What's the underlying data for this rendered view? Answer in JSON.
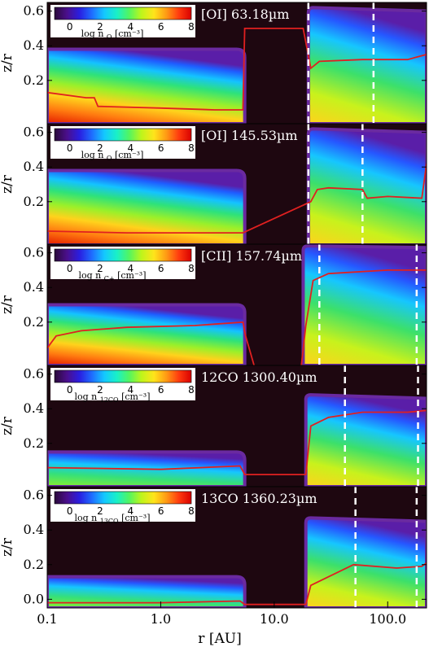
{
  "chart_data": {
    "type": "heatmap",
    "xlabel": "r [AU]",
    "ylabel": "z/r",
    "x_scale": "log",
    "xlim": [
      0.1,
      220
    ],
    "ylim": [
      -0.05,
      0.65
    ],
    "x_ticks": [
      {
        "value": 0.1,
        "label": "0.1"
      },
      {
        "value": 1,
        "label": "1.0"
      },
      {
        "value": 10,
        "label": "10.0"
      },
      {
        "value": 100,
        "label": "100.0"
      }
    ],
    "y_ticks_top_panels": [
      {
        "value": 0.2,
        "label": "0.2"
      },
      {
        "value": 0.4,
        "label": "0.4"
      },
      {
        "value": 0.6,
        "label": "0.6"
      }
    ],
    "y_ticks_bottom_panel": [
      {
        "value": 0.0,
        "label": "0.0"
      },
      {
        "value": 0.2,
        "label": "0.2"
      },
      {
        "value": 0.4,
        "label": "0.4"
      },
      {
        "value": 0.6,
        "label": "0.6"
      }
    ],
    "colorbar": {
      "range": [
        -1,
        8
      ],
      "ticks": [
        "0",
        "2",
        "4",
        "6",
        "8"
      ],
      "colors": [
        "#2a0a3a",
        "#4b0f8c",
        "#2a1ee0",
        "#1f6cff",
        "#14c8ff",
        "#19f0c8",
        "#52f561",
        "#bff51b",
        "#ffe41b",
        "#ff9a14",
        "#ff3b0f",
        "#d80000"
      ]
    },
    "background_color": "#1e0710",
    "contour_color": "#e02020",
    "marker_color": "#ffffff",
    "panels": [
      {
        "line": "[OI] 63.18µm",
        "cb_label": "log n",
        "cb_sub": "O",
        "cb_unit": "[cm⁻³]",
        "inner_disk": {
          "r_start": 0.1,
          "r_end": 5.5,
          "z_top": 0.38
        },
        "outer_disk": {
          "r_start": 20,
          "r_end": 220,
          "z_top_start": 0.62,
          "z_top_end": 0.6
        },
        "red_contour": [
          [
            0.1,
            0.13
          ],
          [
            0.22,
            0.1
          ],
          [
            0.26,
            0.1
          ],
          [
            0.28,
            0.05
          ],
          [
            1,
            0.04
          ],
          [
            3,
            0.03
          ],
          [
            5.3,
            0.03
          ],
          [
            5.5,
            0.5
          ],
          [
            18,
            0.5
          ],
          [
            21,
            0.27
          ],
          [
            25,
            0.31
          ],
          [
            60,
            0.32
          ],
          [
            150,
            0.32
          ],
          [
            220,
            0.35
          ]
        ],
        "white_dashed_r": [
          20,
          75
        ]
      },
      {
        "line": "[OI] 145.53µm",
        "cb_label": "log n",
        "cb_sub": "O",
        "cb_unit": "[cm⁻³]",
        "inner_disk": {
          "r_start": 0.1,
          "r_end": 5.5,
          "z_top": 0.38
        },
        "outer_disk": {
          "r_start": 20,
          "r_end": 220,
          "z_top_start": 0.62,
          "z_top_end": 0.6
        },
        "red_contour": [
          [
            0.1,
            0.03
          ],
          [
            0.5,
            0.02
          ],
          [
            5.3,
            0.02
          ],
          [
            21,
            0.2
          ],
          [
            24,
            0.27
          ],
          [
            30,
            0.28
          ],
          [
            60,
            0.27
          ],
          [
            66,
            0.22
          ],
          [
            100,
            0.23
          ],
          [
            200,
            0.22
          ],
          [
            220,
            0.42
          ]
        ],
        "white_dashed_r": [
          20,
          60
        ]
      },
      {
        "line": "[CII] 157.74µm",
        "cb_label": "log n",
        "cb_sub": "C+",
        "cb_unit": "[cm⁻³]",
        "inner_disk": {
          "r_start": 0.1,
          "r_end": 5.5,
          "z_top": 0.3
        },
        "outer_disk": {
          "r_start": 18,
          "r_end": 220,
          "z_top_start": 0.64,
          "z_top_end": 0.63
        },
        "red_contour": [
          [
            0.1,
            0.05
          ],
          [
            0.12,
            0.12
          ],
          [
            0.2,
            0.15
          ],
          [
            0.5,
            0.17
          ],
          [
            2,
            0.18
          ],
          [
            5.3,
            0.2
          ],
          [
            5.6,
            0.12
          ],
          [
            7,
            -0.1
          ],
          [
            17,
            -0.1
          ],
          [
            19,
            0.18
          ],
          [
            22,
            0.44
          ],
          [
            30,
            0.48
          ],
          [
            100,
            0.5
          ],
          [
            220,
            0.5
          ]
        ],
        "white_dashed_r": [
          25,
          180
        ]
      },
      {
        "line": "12CO 1300.40µm",
        "cb_label": "log n",
        "cb_sub": "12CO",
        "cb_unit": "[cm⁻³]",
        "inner_disk": {
          "r_start": 0.1,
          "r_end": 5.5,
          "z_top": 0.15
        },
        "outer_disk": {
          "r_start": 19,
          "r_end": 220,
          "z_top_start": 0.48,
          "z_top_end": 0.46
        },
        "red_contour": [
          [
            0.1,
            0.06
          ],
          [
            1,
            0.05
          ],
          [
            5,
            0.07
          ],
          [
            5.5,
            0.02
          ],
          [
            19,
            0.02
          ],
          [
            21,
            0.3
          ],
          [
            30,
            0.35
          ],
          [
            60,
            0.38
          ],
          [
            150,
            0.38
          ],
          [
            220,
            0.39
          ]
        ],
        "white_dashed_r": [
          42,
          185
        ]
      },
      {
        "line": "13CO 1360.23µm",
        "cb_label": "log n",
        "cb_sub": "13CO",
        "cb_unit": "[cm⁻³]",
        "inner_disk": {
          "r_start": 0.1,
          "r_end": 5.5,
          "z_top": 0.13
        },
        "outer_disk": {
          "r_start": 19,
          "r_end": 220,
          "z_top_start": 0.47,
          "z_top_end": 0.45
        },
        "red_contour": [
          [
            0.1,
            -0.02
          ],
          [
            1,
            -0.02
          ],
          [
            5,
            -0.01
          ],
          [
            5.5,
            -0.03
          ],
          [
            19,
            -0.03
          ],
          [
            21,
            0.08
          ],
          [
            28,
            0.12
          ],
          [
            50,
            0.2
          ],
          [
            120,
            0.18
          ],
          [
            200,
            0.19
          ],
          [
            220,
            0.21
          ]
        ],
        "white_dashed_r": [
          52,
          180
        ]
      }
    ]
  }
}
